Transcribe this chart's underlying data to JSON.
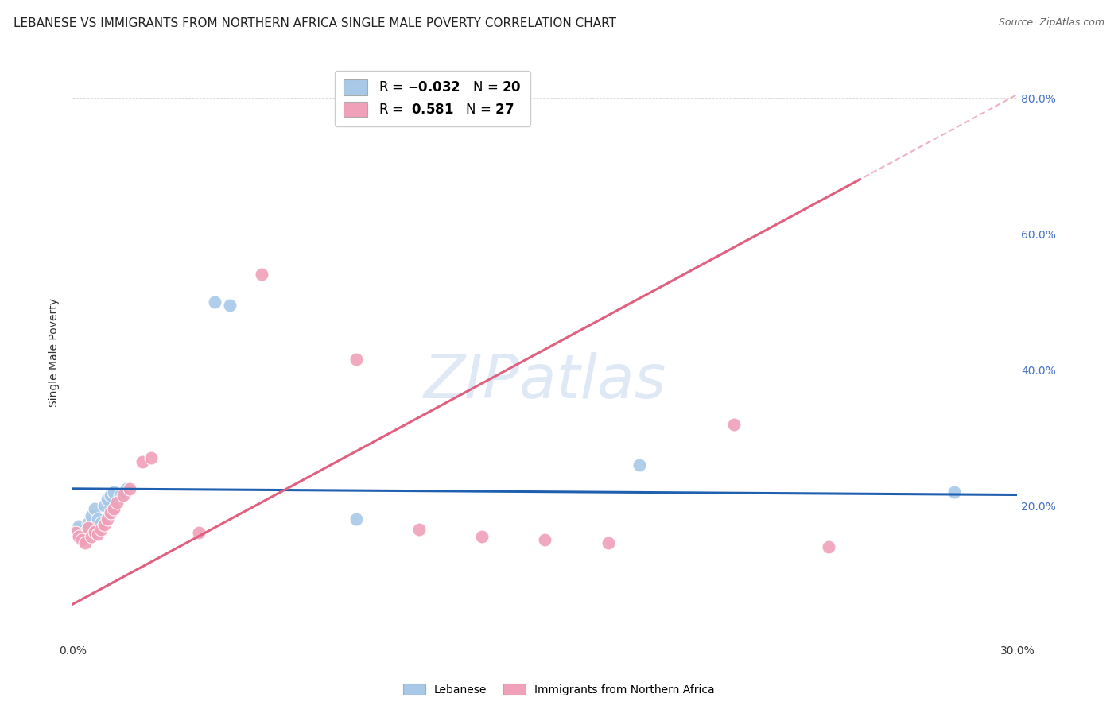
{
  "title": "LEBANESE VS IMMIGRANTS FROM NORTHERN AFRICA SINGLE MALE POVERTY CORRELATION CHART",
  "source": "Source: ZipAtlas.com",
  "ylabel": "Single Male Poverty",
  "xlim": [
    0.0,
    0.3
  ],
  "ylim": [
    0.0,
    0.85
  ],
  "xtick_positions": [
    0.0,
    0.05,
    0.1,
    0.15,
    0.2,
    0.25,
    0.3
  ],
  "xticklabels": [
    "0.0%",
    "",
    "",
    "",
    "",
    "",
    "30.0%"
  ],
  "ytick_right_positions": [
    0.2,
    0.4,
    0.6,
    0.8
  ],
  "ytick_right_labels": [
    "20.0%",
    "40.0%",
    "60.0%",
    "80.0%"
  ],
  "lebanese_color": "#a8c8e8",
  "northern_africa_color": "#f0a0b8",
  "lebanese_line_color": "#2060b0",
  "northern_africa_line_color": "#e06080",
  "northern_africa_dashed_color": "#e8a0b8",
  "background_color": "#ffffff",
  "grid_color": "#d8d8d8",
  "title_fontsize": 11,
  "axis_label_fontsize": 10,
  "tick_fontsize": 10,
  "legend_fontsize": 11,
  "watermark": "ZIPatlas",
  "lebanese_N": "20",
  "northern_africa_R": "0.581",
  "northern_africa_N": "27",
  "lebanese_x": [
    0.001,
    0.002,
    0.003,
    0.004,
    0.005,
    0.006,
    0.007,
    0.008,
    0.009,
    0.01,
    0.011,
    0.012,
    0.013,
    0.015,
    0.017,
    0.045,
    0.05,
    0.09,
    0.18,
    0.28
  ],
  "lebanese_y": [
    0.165,
    0.17,
    0.155,
    0.16,
    0.175,
    0.185,
    0.195,
    0.18,
    0.175,
    0.2,
    0.21,
    0.215,
    0.22,
    0.215,
    0.225,
    0.5,
    0.495,
    0.18,
    0.26,
    0.22
  ],
  "northern_africa_x": [
    0.001,
    0.002,
    0.003,
    0.004,
    0.005,
    0.006,
    0.007,
    0.008,
    0.009,
    0.01,
    0.011,
    0.012,
    0.013,
    0.014,
    0.016,
    0.018,
    0.022,
    0.025,
    0.04,
    0.06,
    0.09,
    0.11,
    0.13,
    0.15,
    0.17,
    0.21,
    0.24
  ],
  "northern_africa_y": [
    0.16,
    0.155,
    0.15,
    0.145,
    0.168,
    0.155,
    0.162,
    0.158,
    0.165,
    0.172,
    0.18,
    0.19,
    0.195,
    0.205,
    0.215,
    0.225,
    0.265,
    0.27,
    0.16,
    0.54,
    0.415,
    0.165,
    0.155,
    0.15,
    0.145,
    0.32,
    0.14
  ]
}
